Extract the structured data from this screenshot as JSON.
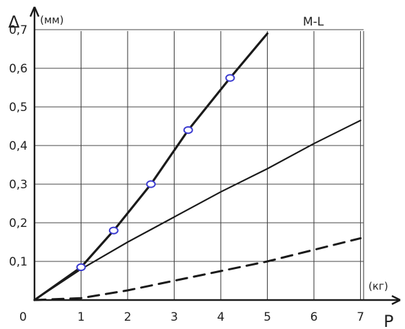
{
  "chart_data": {
    "type": "line",
    "title": "M-L",
    "ylabel": "Δ",
    "ylabel_unit": "(мм)",
    "xlabel": "P",
    "xlabel_unit": "(кг)",
    "origin_label": "0",
    "xlim": [
      0,
      7
    ],
    "ylim": [
      0,
      0.7
    ],
    "x_ticks": [
      "1",
      "2",
      "3",
      "4",
      "5",
      "6",
      "7"
    ],
    "y_ticks": [
      "0,1",
      "0,2",
      "0,3",
      "0,4",
      "0,5",
      "0,6",
      "0,7"
    ],
    "grid": true,
    "colors": {
      "line": "#1a1a1a",
      "marker": "#3b3bd0",
      "grid": "#444444"
    },
    "series": [
      {
        "style": "solid-with-markers",
        "x": [
          0,
          1.0,
          1.7,
          2.5,
          3.3,
          4.2,
          5.0
        ],
        "y": [
          0,
          0.085,
          0.18,
          0.3,
          0.44,
          0.575,
          0.69
        ],
        "markers": [
          {
            "x": 1.0,
            "y": 0.085
          },
          {
            "x": 1.7,
            "y": 0.18
          },
          {
            "x": 2.5,
            "y": 0.3
          },
          {
            "x": 3.3,
            "y": 0.44
          },
          {
            "x": 4.2,
            "y": 0.575
          }
        ]
      },
      {
        "style": "solid",
        "x": [
          0,
          1,
          2,
          3,
          4,
          5,
          6,
          7
        ],
        "y": [
          0,
          0.08,
          0.15,
          0.215,
          0.28,
          0.34,
          0.405,
          0.465
        ]
      },
      {
        "style": "dashed",
        "x": [
          0,
          1,
          2,
          3,
          4,
          5,
          6,
          7
        ],
        "y": [
          0,
          0.005,
          0.025,
          0.05,
          0.075,
          0.1,
          0.13,
          0.16
        ]
      }
    ]
  }
}
